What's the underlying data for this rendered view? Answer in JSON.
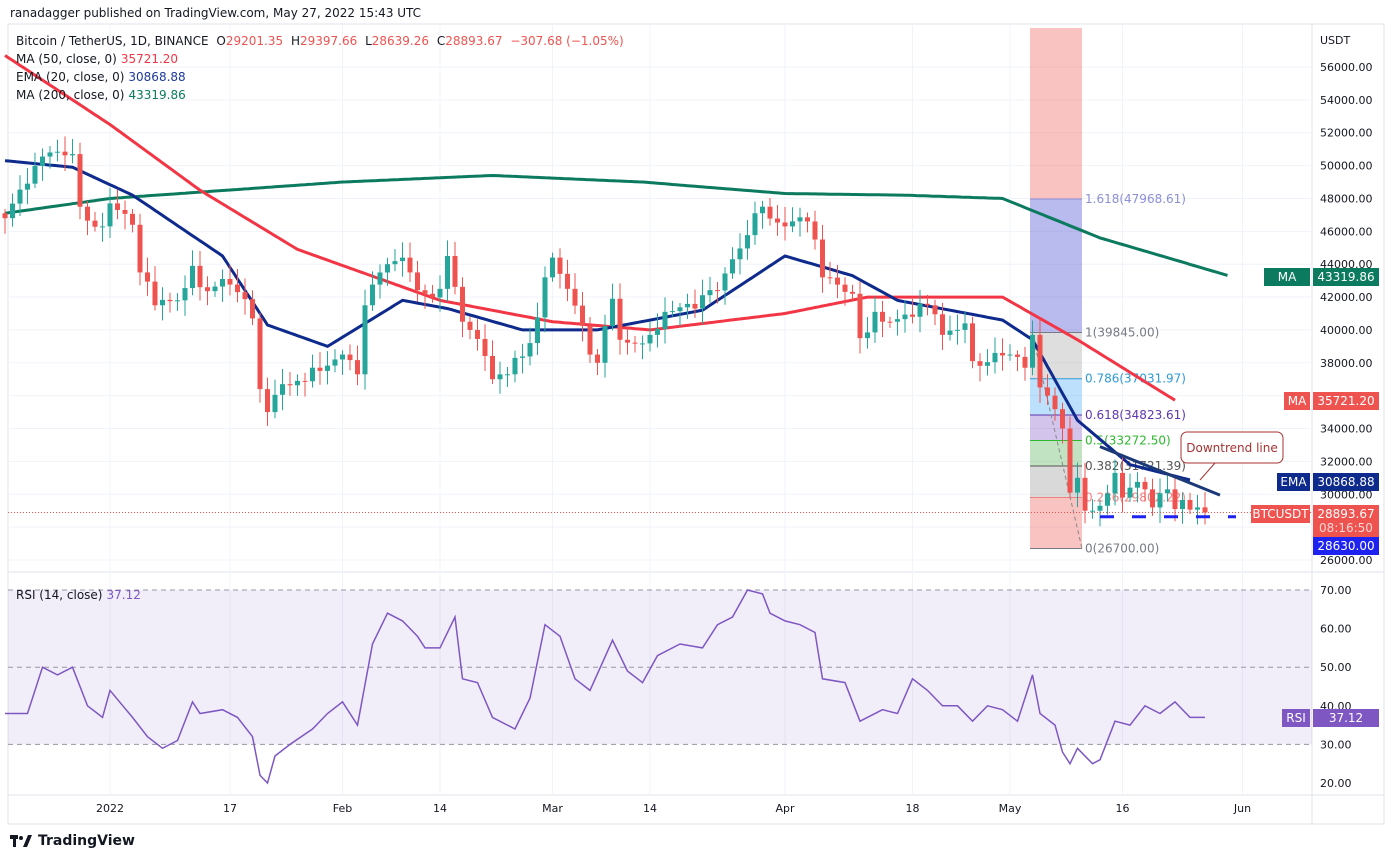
{
  "header": {
    "published": "ranadagger published on TradingView.com, May 27, 2022 15:43 UTC"
  },
  "legend": {
    "symbol": "Bitcoin / TetherUS, 1D, BINANCE",
    "o_label": "O",
    "o": "29201.35",
    "h_label": "H",
    "h": "29397.66",
    "l_label": "L",
    "l": "28639.26",
    "c_label": "C",
    "c": "28893.67",
    "change": "−307.68 (−1.05%)",
    "ma50": {
      "label": "MA (50, close, 0)",
      "value": "35721.20"
    },
    "ema20": {
      "label": "EMA (20, close, 0)",
      "value": "30868.88"
    },
    "ma200": {
      "label": "MA (200, close, 0)",
      "value": "43319.86"
    },
    "rsi": {
      "label": "RSI (14, close)",
      "value": "37.12"
    }
  },
  "footer": {
    "logo": "TradingView"
  },
  "colors": {
    "up": "#26a69a",
    "down": "#ef5350",
    "ma50": "#f23645",
    "ema20": "#0d2a8c",
    "ma200": "#0b7a5e",
    "rsi": "#7e57c2"
  },
  "chart_data": {
    "type": "candlestick",
    "title": "Bitcoin / TetherUS, 1D, BINANCE",
    "y_unit": "USDT",
    "ylim": [
      25000,
      57500
    ],
    "y_ticks": [
      "56000.00",
      "54000.00",
      "52000.00",
      "50000.00",
      "48000.00",
      "46000.00",
      "44000.00",
      "42000.00",
      "40000.00",
      "38000.00",
      "34000.00",
      "32000.00",
      "30000.00",
      "26000.00"
    ],
    "x_start_date": "2021-12-18",
    "x_ticks": [
      {
        "day": 14,
        "label": "2022"
      },
      {
        "day": 30,
        "label": "17"
      },
      {
        "day": 45,
        "label": "Feb"
      },
      {
        "day": 58,
        "label": "14"
      },
      {
        "day": 73,
        "label": "Mar"
      },
      {
        "day": 86,
        "label": "14"
      },
      {
        "day": 104,
        "label": "Apr"
      },
      {
        "day": 121,
        "label": "18"
      },
      {
        "day": 134,
        "label": "May"
      },
      {
        "day": 149,
        "label": "16"
      },
      {
        "day": 165,
        "label": "Jun"
      }
    ],
    "close_keypoints": [
      [
        0,
        46800
      ],
      [
        3,
        48900
      ],
      [
        6,
        50800
      ],
      [
        9,
        50700
      ],
      [
        10,
        47500
      ],
      [
        13,
        46300
      ],
      [
        14,
        47700
      ],
      [
        15,
        47300
      ],
      [
        17,
        46400
      ],
      [
        18,
        43500
      ],
      [
        20,
        41500
      ],
      [
        23,
        41800
      ],
      [
        25,
        43900
      ],
      [
        26,
        42600
      ],
      [
        29,
        43100
      ],
      [
        31,
        42300
      ],
      [
        33,
        40700
      ],
      [
        34,
        36400
      ],
      [
        35,
        35000
      ],
      [
        37,
        36700
      ],
      [
        39,
        36900
      ],
      [
        41,
        37700
      ],
      [
        45,
        38500
      ],
      [
        47,
        37300
      ],
      [
        48,
        41500
      ],
      [
        51,
        44000
      ],
      [
        53,
        44400
      ],
      [
        54,
        43500
      ],
      [
        56,
        42200
      ],
      [
        58,
        42500
      ],
      [
        59,
        44500
      ],
      [
        61,
        40500
      ],
      [
        62,
        40000
      ],
      [
        65,
        37000
      ],
      [
        67,
        37300
      ],
      [
        68,
        38300
      ],
      [
        70,
        39200
      ],
      [
        72,
        43200
      ],
      [
        73,
        44400
      ],
      [
        75,
        42500
      ],
      [
        78,
        38500
      ],
      [
        79,
        38000
      ],
      [
        81,
        41900
      ],
      [
        82,
        39400
      ],
      [
        86,
        39700
      ],
      [
        88,
        41100
      ],
      [
        92,
        41300
      ],
      [
        95,
        42400
      ],
      [
        97,
        44300
      ],
      [
        100,
        47100
      ],
      [
        101,
        47500
      ],
      [
        104,
        46300
      ],
      [
        107,
        46600
      ],
      [
        108,
        45500
      ],
      [
        109,
        43200
      ],
      [
        113,
        42200
      ],
      [
        114,
        39500
      ],
      [
        116,
        41100
      ],
      [
        118,
        40500
      ],
      [
        121,
        40800
      ],
      [
        123,
        41500
      ],
      [
        125,
        39700
      ],
      [
        128,
        40400
      ],
      [
        129,
        38100
      ],
      [
        132,
        38600
      ],
      [
        134,
        38500
      ],
      [
        136,
        37700
      ],
      [
        137,
        39700
      ],
      [
        138,
        36500
      ],
      [
        139,
        36000
      ],
      [
        141,
        34000
      ],
      [
        142,
        30100
      ],
      [
        143,
        31000
      ],
      [
        144,
        29000
      ],
      [
        145,
        29000
      ],
      [
        146,
        29300
      ],
      [
        148,
        31300
      ],
      [
        149,
        29800
      ],
      [
        150,
        30400
      ],
      [
        152,
        30300
      ],
      [
        153,
        29200
      ],
      [
        155,
        30300
      ],
      [
        156,
        29100
      ],
      [
        157,
        29650
      ],
      [
        159,
        29200
      ],
      [
        160,
        28894
      ]
    ],
    "ma200_keypoints": [
      [
        0,
        47100
      ],
      [
        14,
        48000
      ],
      [
        45,
        49000
      ],
      [
        65,
        49400
      ],
      [
        85,
        49000
      ],
      [
        104,
        48300
      ],
      [
        120,
        48200
      ],
      [
        133,
        48000
      ],
      [
        146,
        45600
      ],
      [
        163,
        43320
      ]
    ],
    "ma50_keypoints": [
      [
        0,
        56700
      ],
      [
        14,
        52500
      ],
      [
        26,
        48500
      ],
      [
        39,
        44900
      ],
      [
        58,
        41800
      ],
      [
        73,
        40500
      ],
      [
        86,
        40000
      ],
      [
        104,
        41000
      ],
      [
        115,
        42000
      ],
      [
        133,
        42000
      ],
      [
        143,
        39400
      ],
      [
        156,
        35720
      ]
    ],
    "ema20_keypoints": [
      [
        0,
        50300
      ],
      [
        9,
        49900
      ],
      [
        17,
        48200
      ],
      [
        29,
        44500
      ],
      [
        35,
        40300
      ],
      [
        43,
        39000
      ],
      [
        53,
        41800
      ],
      [
        59,
        41300
      ],
      [
        69,
        40000
      ],
      [
        79,
        40000
      ],
      [
        93,
        41200
      ],
      [
        104,
        44500
      ],
      [
        113,
        43300
      ],
      [
        119,
        41800
      ],
      [
        133,
        40600
      ],
      [
        137,
        39400
      ],
      [
        143,
        34500
      ],
      [
        150,
        31800
      ],
      [
        158,
        30870
      ]
    ],
    "labels": {
      "ma": "MA",
      "ma50_value": "35721.20",
      "ma200_value": "43319.86",
      "ema": "EMA",
      "ema_value": "30868.88",
      "symbol": "BTCUSDT",
      "last_price": "28893.67",
      "countdown": "08:16:50",
      "support": "28630.00",
      "rsi": "RSI",
      "rsi_value": "37.12"
    },
    "support_level": 28630,
    "fibonacci": {
      "high": 39845,
      "low": 26700,
      "levels": [
        {
          "ratio": 1.618,
          "price": 47968.61,
          "label": "1.618(47968.61)",
          "color": "#8c8fd6"
        },
        {
          "ratio": 1,
          "price": 39845.0,
          "label": "1(39845.00)",
          "color": "#787b86"
        },
        {
          "ratio": 0.786,
          "price": 37031.97,
          "label": "0.786(37031.97)",
          "color": "#2f9ad6"
        },
        {
          "ratio": 0.618,
          "price": 34823.61,
          "label": "0.618(34823.61)",
          "color": "#5e35b1"
        },
        {
          "ratio": 0.5,
          "price": 33272.5,
          "label": "0.5(33272.50)",
          "color": "#2eb82e"
        },
        {
          "ratio": 0.382,
          "price": 31721.39,
          "label": "0.382(31721.39)",
          "color": "#555"
        },
        {
          "ratio": 0.236,
          "price": 29802.22,
          "label": "0.236(29802.22)",
          "color": "#f08080"
        },
        {
          "ratio": 0,
          "price": 26700.0,
          "label": "0(26700.00)",
          "color": "#787b86"
        }
      ]
    },
    "downtrend_line": {
      "label": "Downtrend line",
      "from": [
        146,
        32900
      ],
      "to": [
        162,
        29950
      ]
    },
    "rsi": {
      "ylim": [
        17,
        73
      ],
      "ticks": [
        "70.00",
        "60.00",
        "50.00",
        "40.00",
        "30.00",
        "20.00"
      ],
      "bands": [
        70,
        50,
        30
      ],
      "keypoints": [
        [
          0,
          38
        ],
        [
          3,
          38
        ],
        [
          5,
          50
        ],
        [
          7,
          48
        ],
        [
          9,
          50
        ],
        [
          11,
          40
        ],
        [
          13,
          37
        ],
        [
          14,
          44
        ],
        [
          17,
          37
        ],
        [
          19,
          32
        ],
        [
          21,
          29
        ],
        [
          23,
          31
        ],
        [
          25,
          41
        ],
        [
          26,
          38
        ],
        [
          29,
          39
        ],
        [
          31,
          37
        ],
        [
          33,
          32
        ],
        [
          34,
          22
        ],
        [
          35,
          20
        ],
        [
          36,
          27
        ],
        [
          38,
          30
        ],
        [
          41,
          34
        ],
        [
          43,
          38
        ],
        [
          45,
          41
        ],
        [
          47,
          35
        ],
        [
          49,
          56
        ],
        [
          51,
          64
        ],
        [
          53,
          62
        ],
        [
          55,
          58
        ],
        [
          56,
          55
        ],
        [
          58,
          55
        ],
        [
          60,
          63
        ],
        [
          61,
          47
        ],
        [
          63,
          46
        ],
        [
          65,
          37
        ],
        [
          68,
          34
        ],
        [
          70,
          42
        ],
        [
          72,
          61
        ],
        [
          74,
          58
        ],
        [
          76,
          47
        ],
        [
          78,
          44
        ],
        [
          81,
          57
        ],
        [
          83,
          49
        ],
        [
          85,
          46
        ],
        [
          87,
          53
        ],
        [
          90,
          56
        ],
        [
          93,
          55
        ],
        [
          95,
          61
        ],
        [
          97,
          63
        ],
        [
          99,
          70
        ],
        [
          101,
          69
        ],
        [
          102,
          64
        ],
        [
          104,
          62
        ],
        [
          106,
          61
        ],
        [
          108,
          59
        ],
        [
          109,
          47
        ],
        [
          112,
          46
        ],
        [
          114,
          36
        ],
        [
          117,
          39
        ],
        [
          119,
          38
        ],
        [
          121,
          47
        ],
        [
          123,
          44
        ],
        [
          125,
          40
        ],
        [
          127,
          40
        ],
        [
          129,
          36
        ],
        [
          131,
          40
        ],
        [
          133,
          39
        ],
        [
          135,
          36
        ],
        [
          137,
          48
        ],
        [
          138,
          38
        ],
        [
          140,
          35
        ],
        [
          141,
          28
        ],
        [
          142,
          25
        ],
        [
          143,
          29
        ],
        [
          145,
          25
        ],
        [
          146,
          26
        ],
        [
          148,
          36
        ],
        [
          150,
          35
        ],
        [
          152,
          40
        ],
        [
          154,
          38
        ],
        [
          156,
          41
        ],
        [
          158,
          37
        ],
        [
          160,
          37
        ]
      ]
    }
  }
}
